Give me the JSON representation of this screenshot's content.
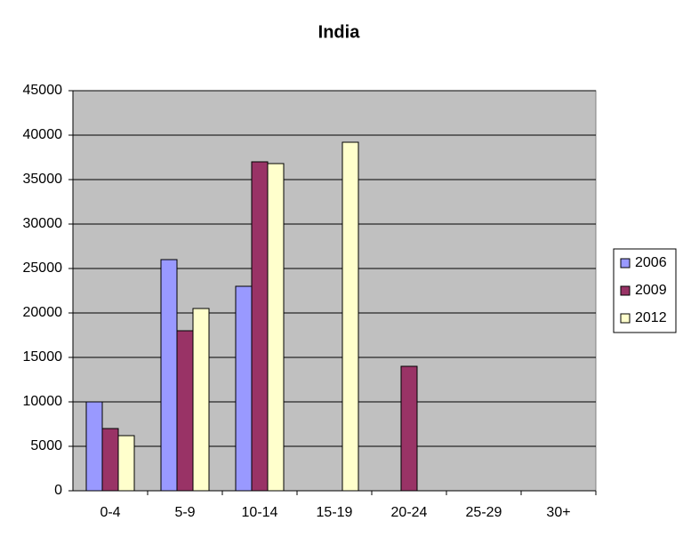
{
  "chart_data": {
    "type": "bar",
    "title": "India",
    "categories": [
      "0-4",
      "5-9",
      "10-14",
      "15-19",
      "20-24",
      "25-29",
      "30+"
    ],
    "series": [
      {
        "name": "2006",
        "color": "#9999ff",
        "values": [
          10000,
          26000,
          23000,
          null,
          null,
          null,
          null
        ]
      },
      {
        "name": "2009",
        "color": "#993366",
        "values": [
          7000,
          18000,
          37000,
          null,
          14000,
          null,
          null
        ]
      },
      {
        "name": "2012",
        "color": "#ffffcc",
        "values": [
          6200,
          20500,
          36800,
          39200,
          null,
          null,
          null
        ]
      }
    ],
    "ylim": [
      0,
      45000
    ],
    "yticks": [
      0,
      5000,
      10000,
      15000,
      20000,
      25000,
      30000,
      35000,
      40000,
      45000
    ],
    "grid": true,
    "legend": "right"
  }
}
